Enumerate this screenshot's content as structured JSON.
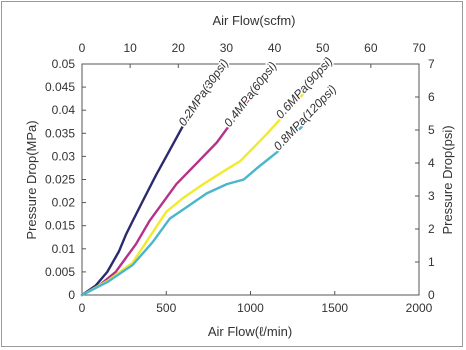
{
  "chart_data": {
    "type": "line",
    "title": "",
    "xlabel_bottom": "Air Flow(ℓ/min)",
    "xlabel_top": "Air Flow(scfm)",
    "ylabel_left": "Pressure Drop(MPa)",
    "ylabel_right": "Pressure Drop(psi)",
    "x_bottom_range": [
      0,
      2000
    ],
    "x_bottom_ticks": [
      "0",
      "500",
      "1000",
      "1500",
      "2000"
    ],
    "x_top_range": [
      0,
      70
    ],
    "x_top_ticks": [
      "0",
      "10",
      "20",
      "30",
      "40",
      "50",
      "60",
      "70"
    ],
    "y_left_range": [
      0,
      0.05
    ],
    "y_left_ticks": [
      "0",
      "0.005",
      "0.01",
      "0.015",
      "0.02",
      "0.025",
      "0.03",
      "0.035",
      "0.04",
      "0.045",
      "0.05"
    ],
    "y_right_range": [
      0,
      7
    ],
    "y_right_ticks": [
      "0",
      "1",
      "2",
      "3",
      "4",
      "5",
      "6",
      "7"
    ],
    "grid": false,
    "series": [
      {
        "name": "0.2MPa(30psi)",
        "color": "#2b2a6e",
        "points": [
          [
            0,
            0
          ],
          [
            80,
            0.002
          ],
          [
            150,
            0.005
          ],
          [
            220,
            0.0095
          ],
          [
            260,
            0.013
          ],
          [
            300,
            0.016
          ],
          [
            370,
            0.021
          ],
          [
            440,
            0.026
          ],
          [
            500,
            0.03
          ],
          [
            560,
            0.034
          ],
          [
            620,
            0.038
          ],
          [
            680,
            0.042
          ],
          [
            740,
            0.045
          ],
          [
            790,
            0.047
          ]
        ]
      },
      {
        "name": "0.4MPa(60psi)",
        "color": "#b5318a",
        "points": [
          [
            0,
            0
          ],
          [
            100,
            0.002
          ],
          [
            200,
            0.005
          ],
          [
            260,
            0.008
          ],
          [
            320,
            0.011
          ],
          [
            400,
            0.016
          ],
          [
            480,
            0.02
          ],
          [
            560,
            0.024
          ],
          [
            640,
            0.027
          ],
          [
            720,
            0.03
          ],
          [
            800,
            0.033
          ],
          [
            880,
            0.037
          ],
          [
            960,
            0.041
          ],
          [
            1040,
            0.0445
          ],
          [
            1090,
            0.047
          ]
        ]
      },
      {
        "name": "0.6MPa(90psi)",
        "color": "#f2ea2c",
        "points": [
          [
            0,
            0
          ],
          [
            150,
            0.003
          ],
          [
            300,
            0.007
          ],
          [
            400,
            0.0125
          ],
          [
            500,
            0.018
          ],
          [
            600,
            0.021
          ],
          [
            720,
            0.024
          ],
          [
            850,
            0.027
          ],
          [
            940,
            0.029
          ],
          [
            1020,
            0.032
          ],
          [
            1100,
            0.035
          ],
          [
            1200,
            0.039
          ],
          [
            1300,
            0.043
          ],
          [
            1380,
            0.0465
          ],
          [
            1410,
            0.0475
          ]
        ]
      },
      {
        "name": "0.8MPa(120psi)",
        "color": "#4ab6cb",
        "points": [
          [
            0,
            0
          ],
          [
            150,
            0.0028
          ],
          [
            300,
            0.0065
          ],
          [
            420,
            0.0115
          ],
          [
            520,
            0.0165
          ],
          [
            620,
            0.019
          ],
          [
            740,
            0.022
          ],
          [
            860,
            0.024
          ],
          [
            960,
            0.025
          ],
          [
            1040,
            0.0275
          ],
          [
            1160,
            0.031
          ],
          [
            1280,
            0.0355
          ],
          [
            1400,
            0.04
          ],
          [
            1460,
            0.0425
          ]
        ]
      }
    ]
  }
}
